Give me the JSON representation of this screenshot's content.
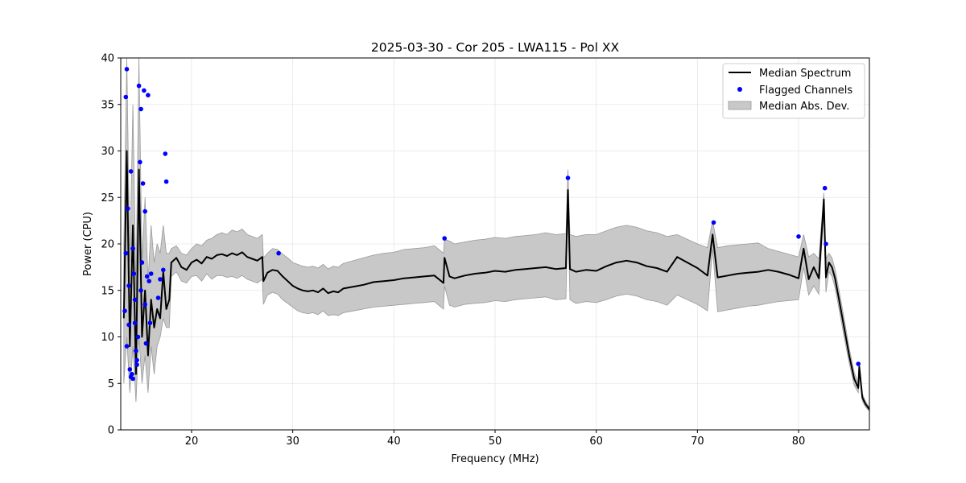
{
  "chart_data": {
    "type": "line",
    "title": "2025-03-30 - Cor 205 - LWA115 - Pol XX",
    "xlabel": "Frequency (MHz)",
    "ylabel": "Power (CPU)",
    "xlim": [
      13,
      87
    ],
    "ylim": [
      0,
      40
    ],
    "xticks": [
      20,
      30,
      40,
      50,
      60,
      70,
      80
    ],
    "yticks": [
      0,
      5,
      10,
      15,
      20,
      25,
      30,
      35,
      40
    ],
    "grid": true,
    "legend_position": "top-right",
    "legend": [
      "Median Spectrum",
      "Flagged Channels",
      "Median Abs. Dev."
    ],
    "colors": {
      "median_line": "#000000",
      "flagged_points": "#0000ff",
      "mad_band": "#c8c8c8",
      "mad_band_edge": "#9a9a9a",
      "grid": "#e6e6e6"
    },
    "series": [
      {
        "name": "Median Spectrum",
        "x": [
          13.3,
          13.6,
          13.9,
          14.2,
          14.5,
          14.8,
          15.1,
          15.4,
          15.7,
          16.0,
          16.3,
          16.6,
          16.9,
          17.2,
          17.5,
          17.8,
          18.0,
          18.5,
          19.0,
          19.5,
          20.0,
          20.5,
          21.0,
          21.5,
          22.0,
          22.5,
          23.0,
          23.5,
          24.0,
          24.5,
          25.0,
          25.5,
          26.0,
          26.5,
          27.0,
          27.1,
          27.5,
          28.0,
          28.5,
          29.0,
          29.5,
          30.0,
          30.5,
          31.0,
          31.5,
          32.0,
          32.5,
          33.0,
          33.5,
          34.0,
          34.5,
          35.0,
          36.0,
          37.0,
          38.0,
          39.0,
          40.0,
          41.0,
          42.0,
          43.0,
          44.0,
          44.9,
          45.0,
          45.5,
          46.0,
          47.0,
          48.0,
          49.0,
          50.0,
          51.0,
          52.0,
          53.0,
          54.0,
          55.0,
          56.0,
          57.0,
          57.2,
          57.4,
          58.0,
          59.0,
          60.0,
          61.0,
          62.0,
          63.0,
          64.0,
          65.0,
          66.0,
          67.0,
          68.0,
          69.0,
          70.0,
          71.0,
          71.5,
          72.0,
          73.0,
          74.0,
          75.0,
          76.0,
          77.0,
          78.0,
          79.0,
          80.0,
          80.5,
          81.0,
          81.5,
          82.0,
          82.5,
          82.7,
          83.0,
          83.3,
          83.6,
          84.0,
          84.5,
          85.0,
          85.5,
          85.9,
          86.0,
          86.3,
          86.6,
          87.0
        ],
        "y": [
          12,
          30,
          9,
          22,
          6,
          28,
          10,
          15,
          8,
          14,
          11,
          13,
          12,
          17,
          13,
          14,
          18,
          18.5,
          17.5,
          17.2,
          18.0,
          18.3,
          17.9,
          18.6,
          18.4,
          18.8,
          18.9,
          18.7,
          19.0,
          18.8,
          19.1,
          18.6,
          18.4,
          18.2,
          18.6,
          16.0,
          16.9,
          17.2,
          17.1,
          16.5,
          16.0,
          15.5,
          15.2,
          15.0,
          14.9,
          15.0,
          14.8,
          15.2,
          14.7,
          14.9,
          14.8,
          15.2,
          15.4,
          15.6,
          15.9,
          16.0,
          16.1,
          16.3,
          16.4,
          16.5,
          16.6,
          15.8,
          18.5,
          16.5,
          16.3,
          16.6,
          16.8,
          16.9,
          17.1,
          17.0,
          17.2,
          17.3,
          17.4,
          17.5,
          17.3,
          17.4,
          25.8,
          17.3,
          17.0,
          17.2,
          17.1,
          17.6,
          18.0,
          18.2,
          18.0,
          17.6,
          17.4,
          17.0,
          18.6,
          18.0,
          17.4,
          16.6,
          21.0,
          16.4,
          16.6,
          16.8,
          16.9,
          17.0,
          17.2,
          17.0,
          16.7,
          16.3,
          19.5,
          16.2,
          17.5,
          16.3,
          24.8,
          16.4,
          18.0,
          17.5,
          16.3,
          14.0,
          11.0,
          8.0,
          5.5,
          4.5,
          6.8,
          3.5,
          2.8,
          2.2
        ]
      },
      {
        "name": "Median Abs. Dev.",
        "x": [
          13.3,
          13.6,
          13.9,
          14.2,
          14.5,
          14.8,
          15.1,
          15.4,
          15.7,
          16.0,
          16.3,
          16.6,
          16.9,
          17.2,
          17.5,
          17.8,
          18.0,
          18.5,
          19.0,
          19.5,
          20.0,
          20.5,
          21.0,
          21.5,
          22.0,
          22.5,
          23.0,
          23.5,
          24.0,
          24.5,
          25.0,
          25.5,
          26.0,
          26.5,
          27.0,
          27.1,
          27.5,
          28.0,
          28.5,
          29.0,
          29.5,
          30.0,
          30.5,
          31.0,
          31.5,
          32.0,
          32.5,
          33.0,
          33.5,
          34.0,
          34.5,
          35.0,
          36.0,
          37.0,
          38.0,
          39.0,
          40.0,
          41.0,
          42.0,
          43.0,
          44.0,
          44.9,
          45.0,
          45.5,
          46.0,
          47.0,
          48.0,
          49.0,
          50.0,
          51.0,
          52.0,
          53.0,
          54.0,
          55.0,
          56.0,
          57.0,
          57.2,
          57.4,
          58.0,
          59.0,
          60.0,
          61.0,
          62.0,
          63.0,
          64.0,
          65.0,
          66.0,
          67.0,
          68.0,
          69.0,
          70.0,
          71.0,
          71.5,
          72.0,
          73.0,
          74.0,
          75.0,
          76.0,
          77.0,
          78.0,
          79.0,
          80.0,
          80.5,
          81.0,
          81.5,
          82.0,
          82.5,
          82.7,
          83.0,
          83.3,
          83.6,
          84.0,
          84.5,
          85.0,
          85.5,
          85.9,
          86.0,
          86.3,
          86.6,
          87.0
        ],
        "upper": [
          20,
          40,
          18,
          35,
          15,
          40,
          18,
          25,
          16,
          22,
          18,
          20,
          19,
          22,
          19,
          19,
          19.5,
          19.8,
          19.0,
          18.8,
          19.5,
          20.0,
          19.8,
          20.4,
          20.6,
          21.0,
          21.2,
          21.0,
          21.5,
          21.3,
          21.6,
          21.0,
          20.8,
          20.6,
          21.0,
          18.5,
          19.0,
          19.5,
          19.4,
          18.9,
          18.5,
          18.0,
          17.8,
          17.6,
          17.5,
          17.6,
          17.4,
          17.8,
          17.3,
          17.6,
          17.5,
          17.9,
          18.2,
          18.5,
          18.8,
          19.0,
          19.1,
          19.4,
          19.5,
          19.6,
          19.8,
          19.0,
          20.5,
          20.3,
          20.0,
          20.2,
          20.4,
          20.5,
          20.7,
          20.6,
          20.8,
          20.9,
          21.0,
          21.2,
          21.0,
          21.1,
          28.0,
          21.0,
          20.8,
          21.0,
          21.0,
          21.4,
          21.8,
          22.0,
          21.8,
          21.4,
          21.2,
          20.8,
          21.0,
          20.5,
          20.0,
          19.6,
          22.5,
          19.6,
          19.8,
          19.9,
          20.0,
          20.1,
          19.5,
          19.2,
          18.9,
          18.6,
          21.0,
          18.6,
          19.0,
          18.4,
          25.5,
          18.4,
          19.0,
          18.5,
          17.3,
          15.0,
          12.0,
          8.8,
          6.2,
          5.0,
          7.2,
          3.9,
          3.1,
          2.4
        ],
        "lower": [
          5,
          10,
          4,
          9,
          3,
          10,
          5,
          8,
          4,
          9,
          6,
          9,
          10,
          12,
          11,
          11,
          16.5,
          17.0,
          16.0,
          15.8,
          16.5,
          16.6,
          16.0,
          16.8,
          16.2,
          16.6,
          16.6,
          16.4,
          16.5,
          16.3,
          16.6,
          16.2,
          16.0,
          15.8,
          16.2,
          13.5,
          14.5,
          14.8,
          14.6,
          14.0,
          13.6,
          13.2,
          12.8,
          12.6,
          12.5,
          12.6,
          12.4,
          12.8,
          12.3,
          12.4,
          12.3,
          12.6,
          12.8,
          13.0,
          13.2,
          13.3,
          13.4,
          13.5,
          13.6,
          13.7,
          13.8,
          13.0,
          15.5,
          13.4,
          13.2,
          13.5,
          13.6,
          13.7,
          13.9,
          13.8,
          14.0,
          14.1,
          14.2,
          14.3,
          14.0,
          14.1,
          23.5,
          14.0,
          13.6,
          13.8,
          13.7,
          14.0,
          14.4,
          14.6,
          14.4,
          14.0,
          13.8,
          13.4,
          14.5,
          14.0,
          13.5,
          12.8,
          19.5,
          12.7,
          12.9,
          13.1,
          13.3,
          13.4,
          13.6,
          13.8,
          13.9,
          14.0,
          17.5,
          14.5,
          15.5,
          14.6,
          23.5,
          14.8,
          17.0,
          16.5,
          15.3,
          13.0,
          10.0,
          7.2,
          4.8,
          4.0,
          6.4,
          3.1,
          2.5,
          2.0
        ]
      },
      {
        "name": "Flagged Channels",
        "x": [
          13.4,
          13.5,
          13.6,
          13.7,
          13.8,
          13.9,
          14.0,
          14.0,
          14.1,
          14.2,
          14.3,
          14.4,
          14.5,
          14.6,
          14.7,
          14.8,
          14.9,
          15.0,
          15.1,
          15.2,
          15.3,
          15.4,
          15.5,
          15.6,
          15.7,
          15.8,
          15.9,
          16.0,
          13.6,
          13.8,
          14.2,
          14.4,
          13.5,
          14.6,
          15.0,
          15.4,
          16.7,
          16.9,
          17.2,
          17.4,
          17.5,
          28.6,
          45.0,
          57.2,
          71.6,
          80.0,
          82.6,
          82.7,
          85.9
        ],
        "y": [
          12.8,
          35.8,
          38.8,
          23.8,
          15.5,
          6.5,
          5.7,
          27.8,
          6.0,
          19.5,
          16.8,
          14.0,
          8.5,
          7.5,
          10.0,
          37.0,
          28.8,
          34.5,
          18.0,
          26.5,
          36.5,
          13.5,
          9.3,
          16.5,
          36.0,
          16.0,
          11.5,
          16.8,
          9.0,
          11.3,
          5.5,
          11.5,
          19.0,
          7.0,
          15.0,
          23.5,
          14.2,
          16.2,
          17.2,
          29.7,
          26.7,
          19.0,
          20.6,
          27.1,
          22.3,
          20.8,
          26.0,
          20.0,
          7.1
        ]
      }
    ]
  }
}
